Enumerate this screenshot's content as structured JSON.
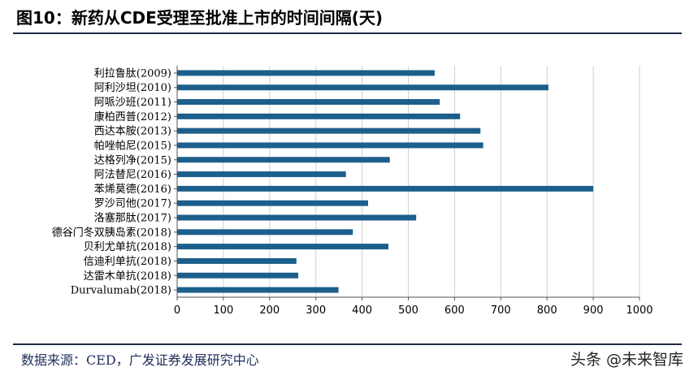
{
  "header": {
    "title": "图10：新药从CDE受理至批准上市的时间间隔(天)"
  },
  "footer": {
    "source": "数据来源：CED，广发证券发展研究中心",
    "watermark": "头条 @未来智库"
  },
  "colors": {
    "bar": "#1d5f8c",
    "grid": "#d0d0d0",
    "rule": "#1f2a44"
  },
  "chart_data": {
    "type": "bar",
    "orientation": "horizontal",
    "categories": [
      "利拉鲁肽(2009)",
      "阿利沙坦(2010)",
      "阿哌沙班(2011)",
      "康柏西普(2012)",
      "西达本胺(2013)",
      "帕唑帕尼(2015)",
      "达格列净(2015)",
      "阿法替尼(2016)",
      "苯烯莫德(2016)",
      "罗沙司他(2017)",
      "洛塞那肽(2017)",
      "德谷门冬双胰岛素(2018)",
      "贝利尤单抗(2018)",
      "信迪利单抗(2018)",
      "达雷木单抗(2018)",
      "Durvalumab(2018)"
    ],
    "values": [
      557,
      803,
      568,
      612,
      656,
      662,
      460,
      365,
      900,
      413,
      517,
      380,
      457,
      258,
      262,
      349
    ],
    "xlim": [
      0,
      1000
    ],
    "xticks": [
      "0",
      "100",
      "200",
      "300",
      "400",
      "500",
      "600",
      "700",
      "800",
      "900",
      "1000"
    ],
    "grid": true,
    "title": "",
    "xlabel": "",
    "ylabel": ""
  }
}
